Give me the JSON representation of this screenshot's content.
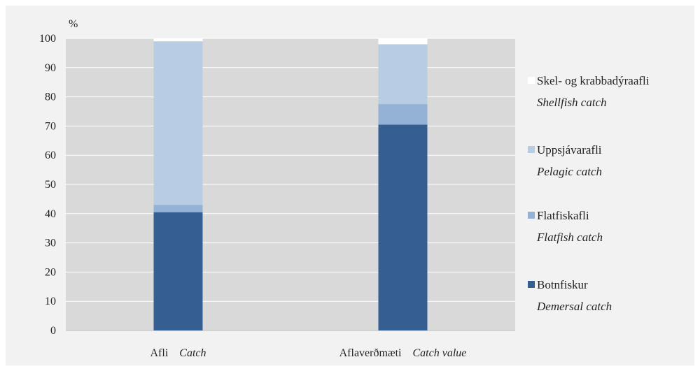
{
  "chart_data": {
    "type": "bar",
    "stacked": true,
    "y_unit": "%",
    "ylim": [
      0,
      100
    ],
    "yticks": [
      0,
      10,
      20,
      30,
      40,
      50,
      60,
      70,
      80,
      90,
      100
    ],
    "categories": [
      {
        "is": "Afli",
        "en": "Catch"
      },
      {
        "is": "Aflaverðmæti",
        "en": "Catch value"
      }
    ],
    "series": [
      {
        "name": "Botnfiskur",
        "name_en": "Demersal catch",
        "color": "#355f93",
        "values": [
          40.5,
          70.5
        ]
      },
      {
        "name": "Flatfiskafli",
        "name_en": "Flatfish catch",
        "color": "#94b1d6",
        "values": [
          2.5,
          7.0
        ]
      },
      {
        "name": "Uppsjávarafli",
        "name_en": "Pelagic catch",
        "color": "#b8cde4",
        "values": [
          56.0,
          20.5
        ]
      },
      {
        "name": "Skel- og krabbadýraafli",
        "name_en": "Shellfish catch",
        "color": "#ffffff",
        "values": [
          1.0,
          2.0
        ]
      }
    ],
    "grid": true,
    "legend_position": "right",
    "plot_background": "#d9d9d9"
  }
}
